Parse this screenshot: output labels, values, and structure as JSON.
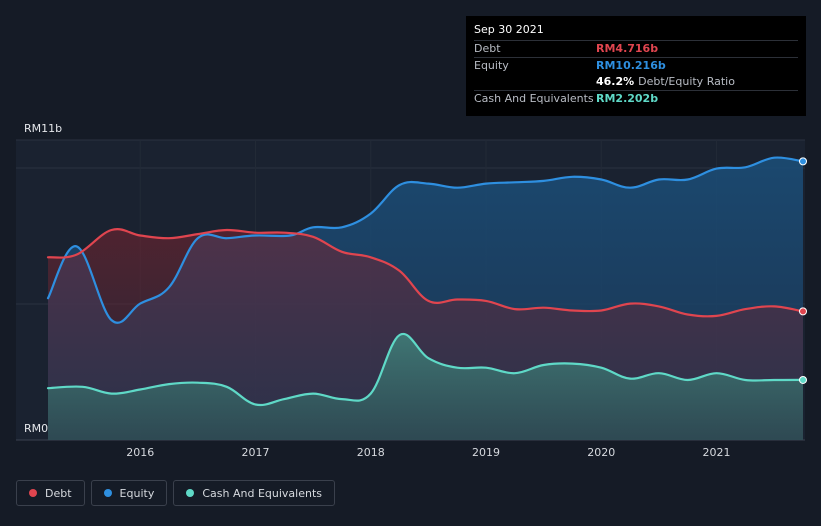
{
  "tooltip": {
    "date": "Sep 30 2021",
    "debt_label": "Debt",
    "debt_value": "RM4.716b",
    "equity_label": "Equity",
    "equity_value": "RM10.216b",
    "ratio_value": "46.2%",
    "ratio_label": "Debt/Equity Ratio",
    "cash_label": "Cash And Equivalents",
    "cash_value": "RM2.202b"
  },
  "legend": [
    {
      "label": "Debt",
      "color": "#e0454f"
    },
    {
      "label": "Equity",
      "color": "#2e8fe0"
    },
    {
      "label": "Cash And Equivalents",
      "color": "#5fd9c7"
    }
  ],
  "chart_data": {
    "type": "area",
    "y_top_label": "RM11b",
    "y_bottom_label": "RM0",
    "ylim": [
      0,
      11
    ],
    "xlim": [
      2015.2,
      2021.75
    ],
    "x_ticks": [
      2016,
      2017,
      2018,
      2019,
      2020,
      2021
    ],
    "x_tick_labels": [
      "2016",
      "2017",
      "2018",
      "2019",
      "2020",
      "2021"
    ],
    "grid": true,
    "legend_position": "bottom-left",
    "series": [
      {
        "name": "Equity",
        "color": "#2e8fe0",
        "points": [
          [
            2015.2,
            5.2
          ],
          [
            2015.45,
            7.1
          ],
          [
            2015.75,
            4.4
          ],
          [
            2016.0,
            5.0
          ],
          [
            2016.25,
            5.6
          ],
          [
            2016.5,
            7.4
          ],
          [
            2016.75,
            7.4
          ],
          [
            2017.0,
            7.5
          ],
          [
            2017.3,
            7.5
          ],
          [
            2017.5,
            7.8
          ],
          [
            2017.75,
            7.8
          ],
          [
            2018.0,
            8.3
          ],
          [
            2018.25,
            9.35
          ],
          [
            2018.5,
            9.4
          ],
          [
            2018.75,
            9.25
          ],
          [
            2019.0,
            9.4
          ],
          [
            2019.25,
            9.45
          ],
          [
            2019.5,
            9.5
          ],
          [
            2019.75,
            9.65
          ],
          [
            2020.0,
            9.55
          ],
          [
            2020.25,
            9.25
          ],
          [
            2020.5,
            9.55
          ],
          [
            2020.75,
            9.55
          ],
          [
            2021.0,
            9.95
          ],
          [
            2021.25,
            10.0
          ],
          [
            2021.5,
            10.35
          ],
          [
            2021.75,
            10.216
          ]
        ]
      },
      {
        "name": "Debt",
        "color": "#e0454f",
        "points": [
          [
            2015.2,
            6.7
          ],
          [
            2015.45,
            6.8
          ],
          [
            2015.75,
            7.7
          ],
          [
            2016.0,
            7.5
          ],
          [
            2016.25,
            7.4
          ],
          [
            2016.5,
            7.55
          ],
          [
            2016.75,
            7.7
          ],
          [
            2017.0,
            7.6
          ],
          [
            2017.25,
            7.6
          ],
          [
            2017.5,
            7.45
          ],
          [
            2017.75,
            6.9
          ],
          [
            2018.0,
            6.7
          ],
          [
            2018.25,
            6.2
          ],
          [
            2018.5,
            5.1
          ],
          [
            2018.75,
            5.15
          ],
          [
            2019.0,
            5.1
          ],
          [
            2019.25,
            4.8
          ],
          [
            2019.5,
            4.85
          ],
          [
            2019.75,
            4.75
          ],
          [
            2020.0,
            4.75
          ],
          [
            2020.25,
            5.0
          ],
          [
            2020.5,
            4.9
          ],
          [
            2020.75,
            4.6
          ],
          [
            2021.0,
            4.55
          ],
          [
            2021.25,
            4.8
          ],
          [
            2021.5,
            4.9
          ],
          [
            2021.75,
            4.716
          ]
        ]
      },
      {
        "name": "Cash And Equivalents",
        "color": "#5fd9c7",
        "points": [
          [
            2015.2,
            1.9
          ],
          [
            2015.5,
            1.95
          ],
          [
            2015.75,
            1.7
          ],
          [
            2016.0,
            1.85
          ],
          [
            2016.25,
            2.05
          ],
          [
            2016.5,
            2.1
          ],
          [
            2016.75,
            1.95
          ],
          [
            2017.0,
            1.3
          ],
          [
            2017.25,
            1.5
          ],
          [
            2017.5,
            1.7
          ],
          [
            2017.75,
            1.5
          ],
          [
            2018.0,
            1.7
          ],
          [
            2018.25,
            3.85
          ],
          [
            2018.5,
            3.0
          ],
          [
            2018.75,
            2.65
          ],
          [
            2019.0,
            2.65
          ],
          [
            2019.25,
            2.45
          ],
          [
            2019.5,
            2.75
          ],
          [
            2019.75,
            2.8
          ],
          [
            2020.0,
            2.65
          ],
          [
            2020.25,
            2.25
          ],
          [
            2020.5,
            2.45
          ],
          [
            2020.75,
            2.2
          ],
          [
            2021.0,
            2.45
          ],
          [
            2021.25,
            2.2
          ],
          [
            2021.5,
            2.2
          ],
          [
            2021.75,
            2.202
          ]
        ]
      }
    ]
  }
}
